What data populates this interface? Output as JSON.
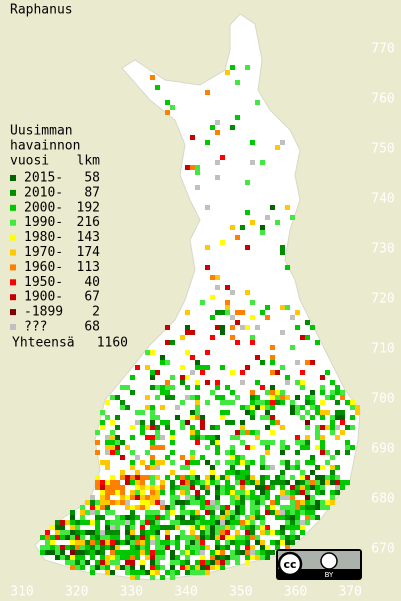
{
  "title": "Raphanus",
  "legend": {
    "heading": [
      "Uusimman",
      "havainnon",
      "vuosi"
    ],
    "count_heading": "lkm",
    "items": [
      {
        "label": "2015-",
        "count": 58,
        "color": "#006400"
      },
      {
        "label": "2010-",
        "count": 87,
        "color": "#008c00"
      },
      {
        "label": "2000-",
        "count": 192,
        "color": "#00c800"
      },
      {
        "label": "1990-",
        "count": 216,
        "color": "#40e840"
      },
      {
        "label": "1980-",
        "count": 143,
        "color": "#ffff00"
      },
      {
        "label": "1970-",
        "count": 174,
        "color": "#ffc800"
      },
      {
        "label": "1960-",
        "count": 113,
        "color": "#ff8000"
      },
      {
        "label": "1950-",
        "count": 40,
        "color": "#ff0000"
      },
      {
        "label": "1900-",
        "count": 67,
        "color": "#c80000"
      },
      {
        "label": "-1899",
        "count": 2,
        "color": "#800000"
      },
      {
        "label": "???",
        "count": 68,
        "color": "#c0c0c0"
      }
    ],
    "total_label": "Yhteensä",
    "total": 1160
  },
  "x_axis_labels": [
    310,
    320,
    330,
    340,
    350,
    360,
    370
  ],
  "y_axis_labels": [
    670,
    680,
    690,
    700,
    710,
    720,
    730,
    740,
    750,
    760,
    770
  ],
  "license": {
    "cc": "cc",
    "by": "BY"
  }
}
